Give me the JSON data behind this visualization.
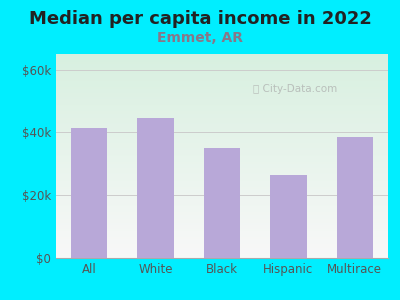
{
  "title": "Median per capita income in 2022",
  "subtitle": "Emmet, AR",
  "categories": [
    "All",
    "White",
    "Black",
    "Hispanic",
    "Multirace"
  ],
  "values": [
    41500,
    44500,
    35000,
    26500,
    38500
  ],
  "bar_color": "#b8a8d8",
  "title_fontsize": 13,
  "subtitle_fontsize": 10,
  "subtitle_color": "#887788",
  "title_color": "#222222",
  "background_outer": "#00eeff",
  "ylim": [
    0,
    65000
  ],
  "yticks": [
    0,
    20000,
    40000,
    60000
  ],
  "ytick_labels": [
    "$0",
    "$20k",
    "$40k",
    "$60k"
  ],
  "tick_color": "#555555",
  "grid_color": "#cccccc",
  "watermark": "City-Data.com",
  "grad_color_topleft": "#d8f0e0",
  "grad_color_bottomright": "#f8f8f8"
}
